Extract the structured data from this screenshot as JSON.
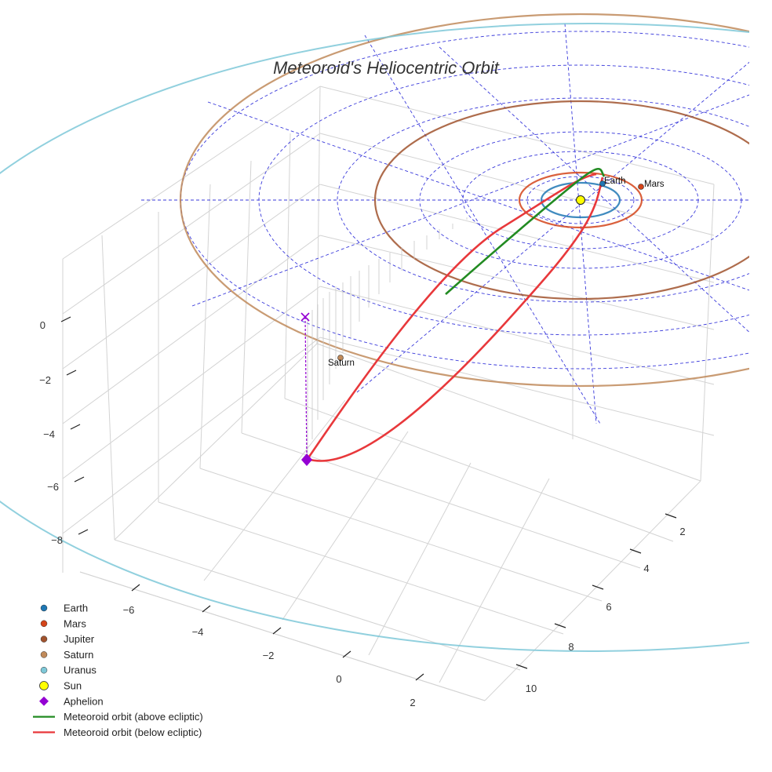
{
  "chart_data": {
    "type": "3d-orbit",
    "title": "Meteoroid's Heliocentric Orbit",
    "axes": {
      "x_ticks": [
        "−6",
        "−4",
        "−2",
        "0",
        "2"
      ],
      "y_ticks": [
        "2",
        "4",
        "6",
        "8",
        "10"
      ],
      "z_ticks": [
        "0",
        "−2",
        "−4",
        "−6",
        "−8"
      ]
    },
    "bodies": [
      {
        "name": "Earth",
        "label": "Earth",
        "color": "#1f77b4",
        "orbit_radius_au": 1.0
      },
      {
        "name": "Mars",
        "label": "Mars",
        "color": "#d4441a",
        "orbit_radius_au": 1.52
      },
      {
        "name": "Jupiter",
        "label": "",
        "color": "#a0522d",
        "orbit_radius_au": 5.2
      },
      {
        "name": "Saturn",
        "label": "Saturn",
        "color": "#c08a5a",
        "orbit_radius_au": 9.58
      },
      {
        "name": "Uranus",
        "label": "",
        "color": "#7ec8d8",
        "orbit_radius_au": 19.2
      }
    ],
    "sun": {
      "name": "Sun",
      "color": "#ffff00"
    },
    "aphelion": {
      "name": "Aphelion",
      "color": "#9400d3"
    },
    "meteoroid": {
      "above": {
        "name": "Meteoroid orbit (above ecliptic)",
        "color": "#228b22"
      },
      "below": {
        "name": "Meteoroid orbit (below ecliptic)",
        "color": "#e8383b"
      }
    },
    "legend": [
      {
        "label": "Earth",
        "kind": "dot",
        "color": "#1f77b4"
      },
      {
        "label": "Mars",
        "kind": "dot",
        "color": "#d4441a"
      },
      {
        "label": "Jupiter",
        "kind": "dot",
        "color": "#a0522d"
      },
      {
        "label": "Saturn",
        "kind": "dot",
        "color": "#c08a5a"
      },
      {
        "label": "Uranus",
        "kind": "dot",
        "color": "#7ec8d8"
      },
      {
        "label": "Sun",
        "kind": "sun",
        "color": "#ffff00"
      },
      {
        "label": "Aphelion",
        "kind": "diamond",
        "color": "#9400d3"
      },
      {
        "label": "Meteoroid orbit (above ecliptic)",
        "kind": "line",
        "color": "#228b22"
      },
      {
        "label": "Meteoroid orbit (below ecliptic)",
        "kind": "line",
        "color": "#e8383b"
      }
    ],
    "legend_position": "bottom-left",
    "grid": true
  }
}
